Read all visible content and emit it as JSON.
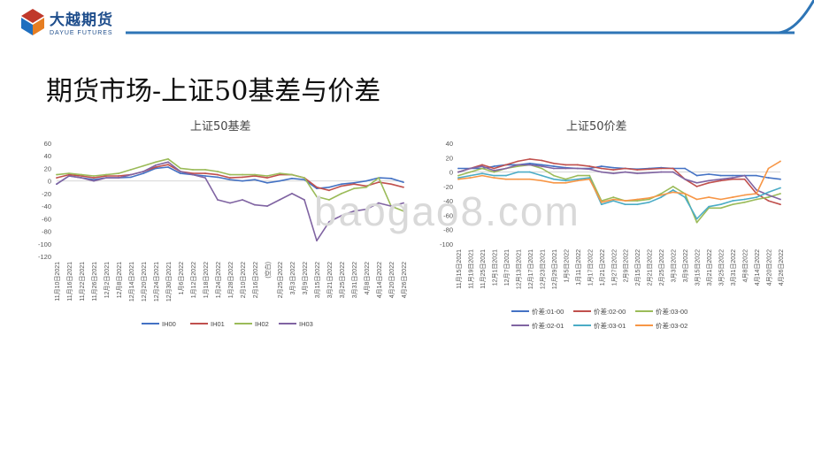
{
  "header": {
    "logo_name": "大越期货",
    "logo_sub": "DAYUE FUTURES",
    "accent_color": "#1f6fbf",
    "line_color": "#2e75b6"
  },
  "page_title": "期货市场-上证50基差与价差",
  "watermark": "baogao8.com",
  "chart_data": [
    {
      "type": "line",
      "title": "上证50基差",
      "xlabel": "",
      "ylabel": "",
      "ylim": [
        -120,
        60
      ],
      "yticks": [
        60,
        40,
        20,
        0,
        -20,
        -40,
        -60,
        -80,
        -100,
        -120
      ],
      "grid": false,
      "legend_position": "bottom",
      "categories": [
        "11月10日2021",
        "11月16日2021",
        "11月22日2021",
        "11月26日2021",
        "12月2日2021",
        "12月8日2021",
        "12月14日2021",
        "12月20日2021",
        "12月24日2021",
        "12月30日2021",
        "1月6日2022",
        "1月12日2022",
        "1月18日2022",
        "1月24日2022",
        "1月28日2022",
        "2月10日2022",
        "2月16日2022",
        "(空白)",
        "2月25日2022",
        "3月3日2022",
        "3月9日2022",
        "3月15日2022",
        "3月21日2022",
        "3月25日2022",
        "3月31日2022",
        "4月8日2022",
        "4月14日2022",
        "4月20日2022",
        "4月26日2022"
      ],
      "series": [
        {
          "name": "IH00",
          "color": "#4472c4",
          "values": [
            -5,
            8,
            5,
            2,
            5,
            5,
            6,
            12,
            20,
            22,
            12,
            10,
            8,
            6,
            2,
            0,
            2,
            -3,
            0,
            4,
            2,
            -12,
            -10,
            -5,
            -3,
            0,
            5,
            4,
            -2
          ]
        },
        {
          "name": "IH01",
          "color": "#c0504d",
          "values": [
            5,
            10,
            8,
            5,
            8,
            8,
            10,
            15,
            22,
            26,
            15,
            12,
            12,
            10,
            5,
            6,
            8,
            5,
            10,
            10,
            5,
            -10,
            -15,
            -8,
            -5,
            -8,
            -2,
            -5,
            -10
          ]
        },
        {
          "name": "IH02",
          "color": "#9bbb59",
          "values": [
            10,
            12,
            10,
            8,
            10,
            12,
            18,
            24,
            30,
            35,
            20,
            18,
            18,
            15,
            10,
            10,
            10,
            8,
            12,
            10,
            5,
            -25,
            -30,
            -20,
            -12,
            -10,
            5,
            -40,
            -48
          ]
        },
        {
          "name": "IH03",
          "color": "#8064a2",
          "values": [
            -5,
            8,
            5,
            0,
            5,
            5,
            10,
            15,
            25,
            30,
            15,
            10,
            5,
            -30,
            -35,
            -30,
            -38,
            -40,
            -30,
            -20,
            -30,
            -95,
            -65,
            -55,
            -48,
            -45,
            -35,
            -40,
            -35
          ]
        }
      ]
    },
    {
      "type": "line",
      "title": "上证50价差",
      "xlabel": "",
      "ylabel": "",
      "ylim": [
        -100,
        40
      ],
      "yticks": [
        40,
        20,
        0,
        -20,
        -40,
        -60,
        -80,
        -100
      ],
      "grid": false,
      "legend_position": "bottom",
      "categories": [
        "11月15日2021",
        "11月19日2021",
        "11月25日2021",
        "12月1日2021",
        "12月7日2021",
        "12月13日2021",
        "12月17日2021",
        "12月23日2021",
        "12月29日2021",
        "1月5日2022",
        "1月11日2022",
        "1月17日2022",
        "1月21日2022",
        "1月27日2022",
        "2月9日2022",
        "2月15日2022",
        "2月21日2022",
        "2月25日2022",
        "3月3日2022",
        "3月9日2022",
        "3月15日2022",
        "3月21日2022",
        "3月25日2022",
        "3月31日2022",
        "4月8日2022",
        "4月14日2022",
        "4月20日2022",
        "4月26日2022"
      ],
      "series": [
        {
          "name": "价差:01-00",
          "color": "#4472c4",
          "values": [
            5,
            5,
            5,
            8,
            10,
            10,
            12,
            10,
            8,
            6,
            5,
            5,
            8,
            6,
            5,
            4,
            5,
            6,
            5,
            5,
            -5,
            -3,
            -5,
            -5,
            -5,
            -5,
            -8,
            -10
          ]
        },
        {
          "name": "价差:02-00",
          "color": "#c0504d",
          "values": [
            0,
            5,
            10,
            5,
            10,
            15,
            18,
            16,
            12,
            10,
            10,
            8,
            5,
            3,
            5,
            3,
            4,
            5,
            5,
            -10,
            -20,
            -15,
            -12,
            -10,
            -10,
            -30,
            -40,
            -45
          ]
        },
        {
          "name": "价差:03-00",
          "color": "#9bbb59",
          "values": [
            -5,
            0,
            5,
            0,
            5,
            8,
            10,
            5,
            -5,
            -10,
            -5,
            -5,
            -40,
            -35,
            -40,
            -40,
            -38,
            -30,
            -20,
            -30,
            -70,
            -50,
            -50,
            -45,
            -42,
            -38,
            -35,
            -30
          ]
        },
        {
          "name": "价差:02-01",
          "color": "#8064a2",
          "values": [
            0,
            5,
            8,
            2,
            5,
            10,
            10,
            8,
            5,
            5,
            5,
            4,
            0,
            -2,
            0,
            -2,
            -1,
            0,
            0,
            -10,
            -15,
            -12,
            -10,
            -8,
            -5,
            -25,
            -32,
            -38
          ]
        },
        {
          "name": "价差:03-01",
          "color": "#4bacc6",
          "values": [
            -8,
            -5,
            -2,
            -5,
            -5,
            0,
            0,
            -5,
            -10,
            -12,
            -10,
            -8,
            -45,
            -40,
            -45,
            -45,
            -42,
            -35,
            -25,
            -35,
            -65,
            -48,
            -45,
            -40,
            -38,
            -35,
            -28,
            -22
          ]
        },
        {
          "name": "价差:03-02",
          "color": "#f79646",
          "values": [
            -10,
            -8,
            -5,
            -8,
            -10,
            -10,
            -10,
            -12,
            -15,
            -15,
            -12,
            -10,
            -42,
            -38,
            -40,
            -38,
            -36,
            -32,
            -28,
            -30,
            -38,
            -35,
            -38,
            -35,
            -32,
            -30,
            5,
            15
          ]
        }
      ]
    }
  ]
}
